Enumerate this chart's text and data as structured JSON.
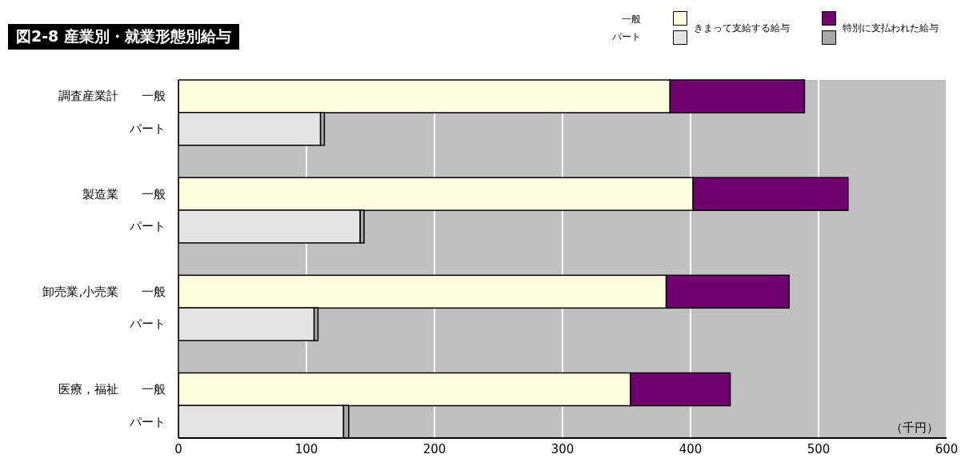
{
  "chart_data": {
    "type": "bar",
    "orientation": "horizontal",
    "stacked": true,
    "title": "図2-8 産業別・就業形態別給与",
    "xlabel": "（千円）",
    "categories": [
      "調査産業計 一般",
      "パート",
      null,
      "製造業 一般",
      "パート",
      null,
      "卸売業,小売業 一般",
      "パート",
      null,
      "医療，福祉 一般",
      "パート"
    ],
    "series": [
      {
        "name": "きまって支給する給与",
        "values": [
          384,
          111,
          null,
          402,
          142,
          null,
          381,
          106,
          null,
          353,
          129
        ],
        "colors": [
          "#fffde0",
          "#e4e4e4",
          null,
          "#fffde0",
          "#e4e4e4",
          null,
          "#fffde0",
          "#e4e4e4",
          null,
          "#fffde0",
          "#e4e4e4"
        ]
      },
      {
        "name": "特別に支払われた給与",
        "values": [
          105,
          3,
          null,
          121,
          3,
          null,
          96,
          3,
          null,
          78,
          4
        ],
        "colors": [
          "#700070",
          "#a8a8a8",
          null,
          "#700070",
          "#a8a8a8",
          null,
          "#700070",
          "#a8a8a8",
          null,
          "#700070",
          "#a8a8a8"
        ]
      }
    ],
    "annotations": [
      "一般",
      "パート"
    ],
    "xlim": [
      0,
      600
    ],
    "xticks": [
      0,
      100,
      200,
      300,
      400,
      500,
      600
    ],
    "grid": "x",
    "legend": "top right"
  }
}
